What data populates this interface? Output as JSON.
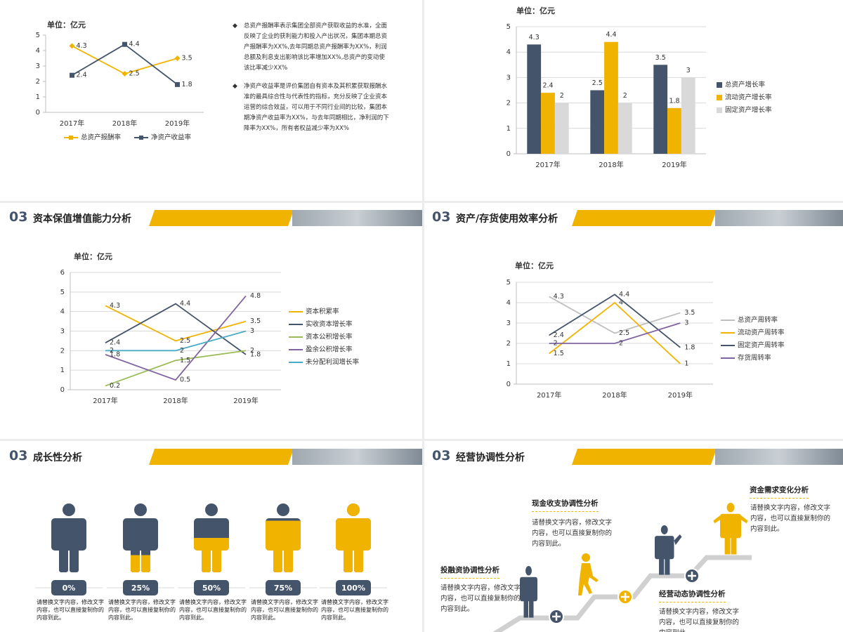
{
  "chart_data": [
    {
      "type": "line",
      "title": "单位：亿元",
      "categories": [
        "2017年",
        "2018年",
        "2019年"
      ],
      "ylim": [
        0,
        5
      ],
      "yticks": [
        0,
        1,
        2,
        3,
        4,
        5
      ],
      "grid": false,
      "markers": true,
      "legend": "bottom",
      "series": [
        {
          "name": "总资产报酬率",
          "color": "#f0b400",
          "values": [
            4.3,
            2.5,
            3.5
          ]
        },
        {
          "name": "净资产收益率",
          "color": "#44546a",
          "values": [
            2.4,
            4.4,
            1.8
          ]
        }
      ]
    },
    {
      "type": "bar",
      "title": "单位：亿元",
      "categories": [
        "2017年",
        "2018年",
        "2019年"
      ],
      "ylim": [
        0,
        5
      ],
      "yticks": [
        0,
        1,
        2,
        3,
        4,
        5
      ],
      "grid": true,
      "legend": "right",
      "series": [
        {
          "name": "总资产增长率",
          "color": "#44546a",
          "values": [
            4.3,
            2.5,
            3.5
          ]
        },
        {
          "name": "流动资产增长率",
          "color": "#f0b400",
          "values": [
            2.4,
            4.4,
            1.8
          ]
        },
        {
          "name": "固定资产增长率",
          "color": "#d9d9d9",
          "values": [
            2,
            2,
            3
          ]
        }
      ]
    },
    {
      "type": "line",
      "title": "单位：亿元",
      "categories": [
        "2017年",
        "2018年",
        "2019年"
      ],
      "ylim": [
        0,
        6
      ],
      "yticks": [
        0,
        1,
        2,
        3,
        4,
        5,
        6
      ],
      "grid": true,
      "markers": false,
      "legend": "right",
      "series": [
        {
          "name": "资本积累率",
          "color": "#f0b400",
          "values": [
            4.3,
            2.5,
            3.5
          ]
        },
        {
          "name": "实收资本增长率",
          "color": "#44546a",
          "values": [
            2.4,
            4.4,
            1.8
          ]
        },
        {
          "name": "资本公积增长率",
          "color": "#9bbb59",
          "values": [
            0.2,
            1.5,
            2
          ]
        },
        {
          "name": "盈余公积增长率",
          "color": "#8064a2",
          "values": [
            1.8,
            0.5,
            4.8
          ]
        },
        {
          "name": "未分配利润增长率",
          "color": "#4bacc6",
          "values": [
            2,
            2,
            3
          ]
        }
      ]
    },
    {
      "type": "line",
      "title": "单位：亿元",
      "categories": [
        "2017年",
        "2018年",
        "2019年"
      ],
      "ylim": [
        0,
        5
      ],
      "yticks": [
        0,
        1,
        2,
        3,
        4,
        5
      ],
      "grid": true,
      "markers": false,
      "legend": "right",
      "series": [
        {
          "name": "总资产周转率",
          "color": "#bfbfbf",
          "values": [
            4.3,
            2.5,
            3.5
          ]
        },
        {
          "name": "流动资产周转率",
          "color": "#f0b400",
          "values": [
            1.5,
            4,
            1
          ]
        },
        {
          "name": "固定资产周转率",
          "color": "#44546a",
          "values": [
            2.4,
            4.4,
            1.8
          ]
        },
        {
          "name": "存货周转率",
          "color": "#8064a2",
          "values": [
            2,
            2,
            3
          ]
        }
      ]
    },
    {
      "type": "pictogram",
      "ylim": [
        0,
        100
      ],
      "color": "#f0b400",
      "base_color": "#44546a",
      "values": [
        0,
        25,
        50,
        75,
        100
      ],
      "value_labels": [
        "0%",
        "25%",
        "50%",
        "75%",
        "100%"
      ],
      "captions": [
        "请替换文字内容，修改文字内容，也可以直接复制你的内容到此。",
        "请替换文字内容，修改文字内容，也可以直接复制你的内容到此。",
        "请替换文字内容，修改文字内容，也可以直接复制你的内容到此。",
        "请替换文字内容，修改文字内容，也可以直接复制你的内容到此。",
        "请替换文字内容，修改文字内容，也可以直接复制你的内容到此。"
      ]
    }
  ],
  "notes": [
    "总资产报酬率表示集团全部资产获取收益的水准，全面反映了企业的获利能力和投入产出状况，集团本期总资产报酬率为XX%,去年同期总资产报酬率为XX%，利润总额及利息支出影响该比率增加XX%,总资产的变动使该比率减少XX%",
    "净资产收益率是评价集团自有资本及其积累获取报酬水准的最具综合性与代表性的指标，充分反映了企业资本运营的综合效益，可以用于不同行业间的比较，集团本期净资产收益率为XX%，与去年同期相比，净利润的下降率为XX%，所有者权益减少率为XX%"
  ],
  "sections": [
    {
      "number": "03",
      "title": "资本保值增值能力分析"
    },
    {
      "number": "03",
      "title": "资产/存货使用效率分析"
    },
    {
      "number": "03",
      "title": "成长性分析"
    },
    {
      "number": "03",
      "title": "经营协调性分析"
    }
  ],
  "coordination": [
    {
      "title": "投融资协调性分析",
      "text": "请替换文字内容，修改文字内容，也可以直接复制你的内容到此。"
    },
    {
      "title": "现金收支协调性分析",
      "text": "请替换文字内容，修改文字内容，也可以直接复制你的内容到此。"
    },
    {
      "title": "资金需求变化分析",
      "text": "请替换文字内容，修改文字内容，也可以直接复制你的内容到此。"
    },
    {
      "title": "经营动态协调性分析",
      "text": "请替换文字内容，修改文字内容，也可以直接复制你的内容到此。"
    }
  ]
}
